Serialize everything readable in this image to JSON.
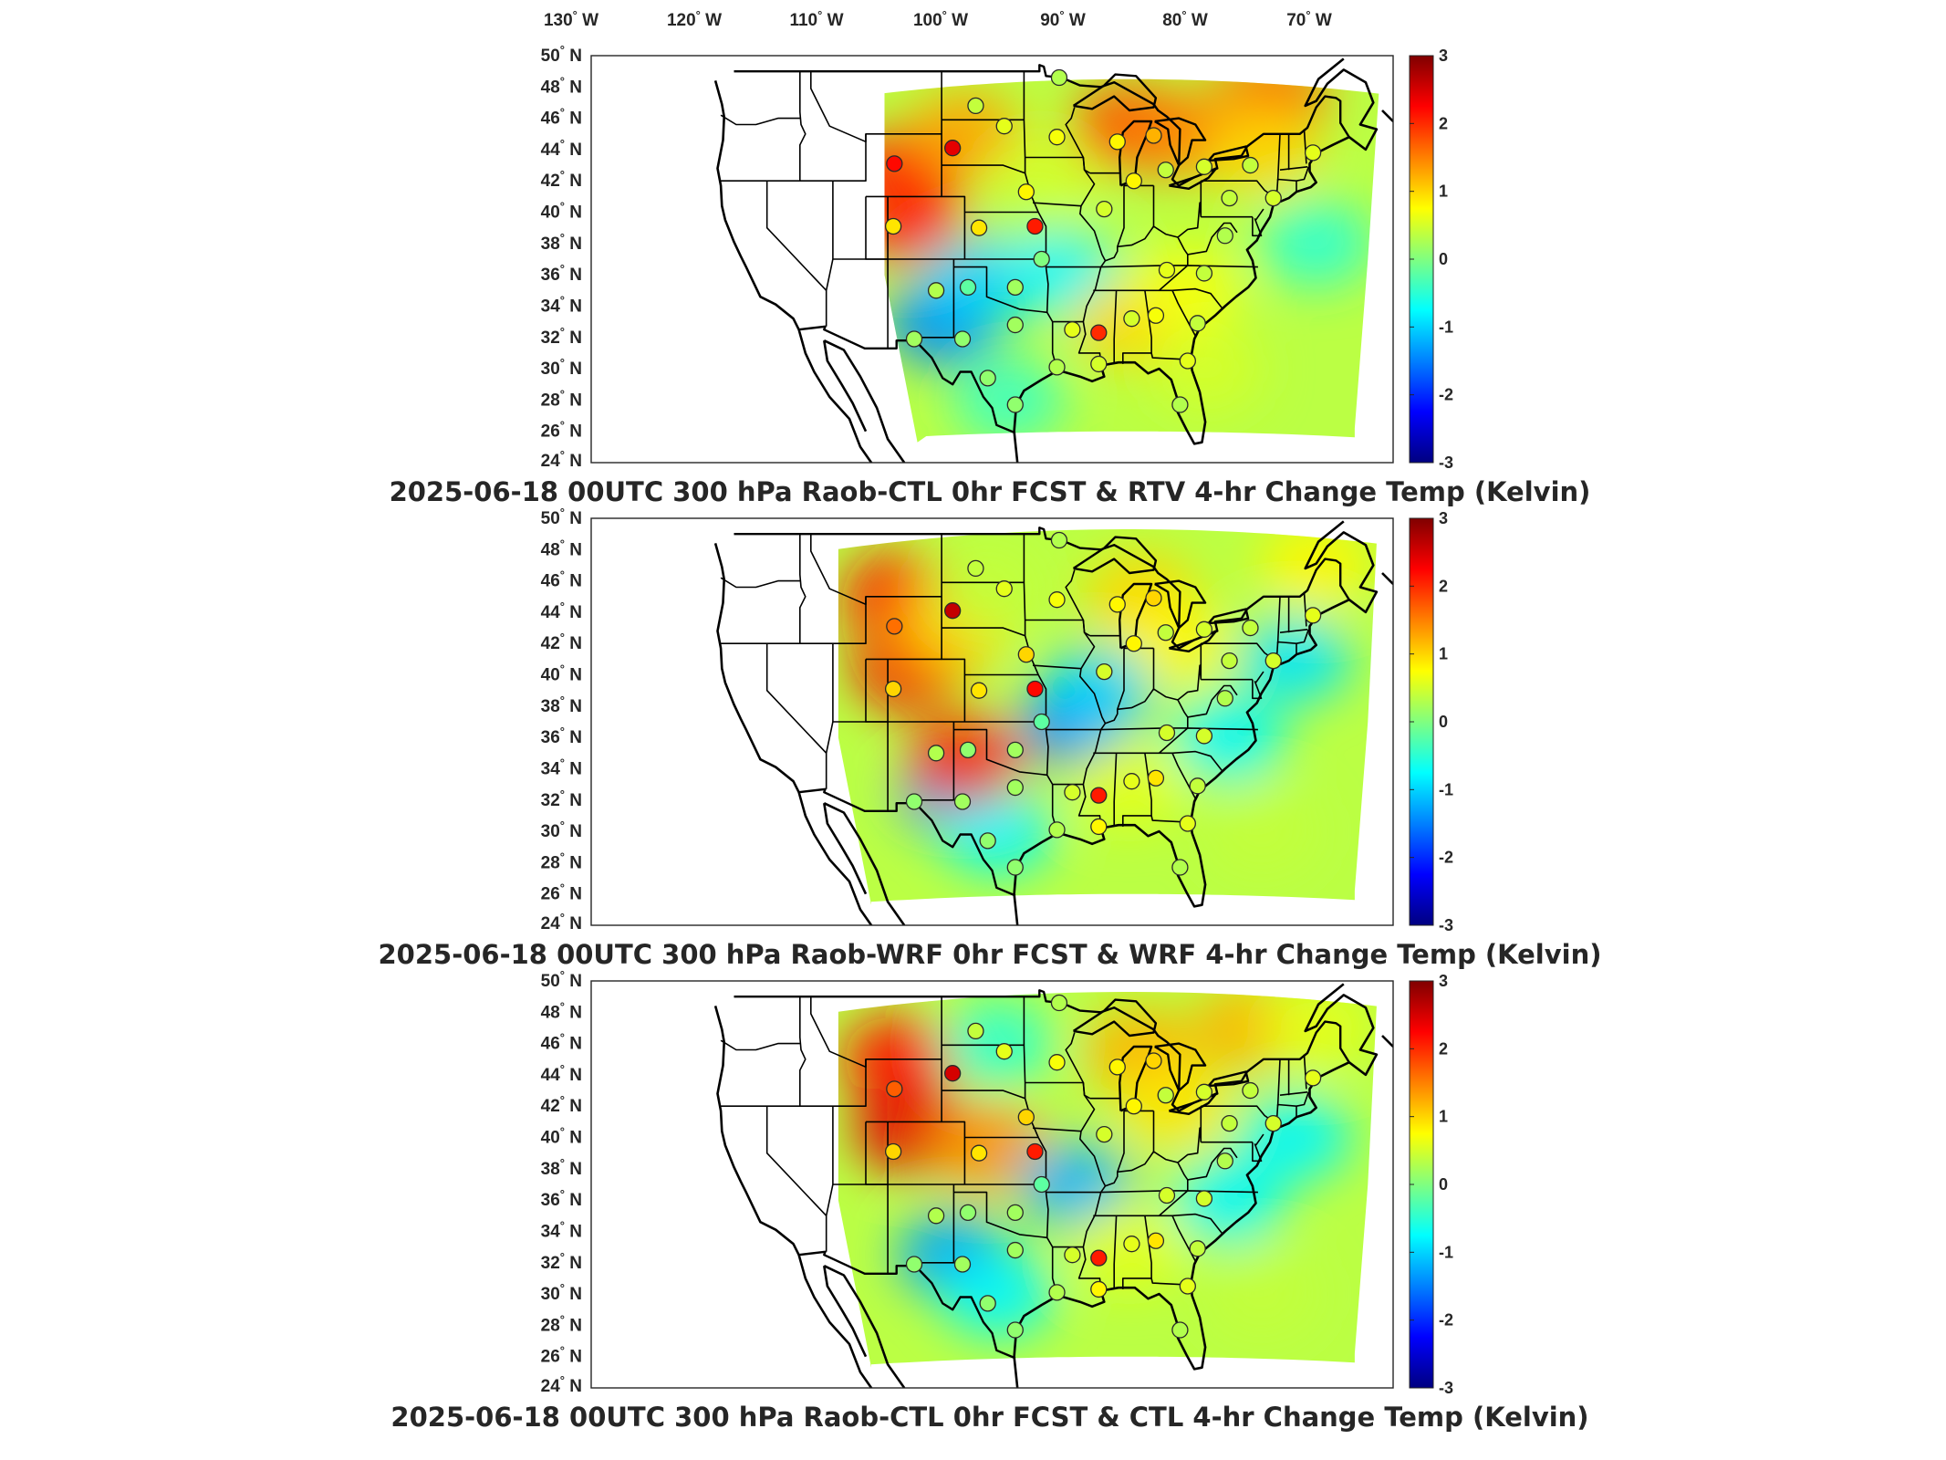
{
  "figure": {
    "lon_labels": [
      "130",
      "120",
      "110",
      "100",
      "90",
      "80",
      "70"
    ],
    "lon_suffix": "W",
    "lat_labels": [
      "50",
      "48",
      "46",
      "44",
      "42",
      "40",
      "38",
      "36",
      "34",
      "32",
      "30",
      "28",
      "26",
      "24"
    ],
    "lat_suffix": "N",
    "degree_symbol": "°",
    "colorbar": {
      "ticks": [
        "3",
        "2",
        "1",
        "0",
        "-1",
        "-2",
        "-3"
      ],
      "range": [
        -3,
        3
      ],
      "colormap": "jet"
    }
  },
  "panels": [
    {
      "title": "2025-06-18 00UTC 300 hPa Raob-CTL 0hr FCST & RTV 4-hr Change Temp (Kelvin)",
      "field": {
        "regions": [
          {
            "lon": -107.5,
            "lat": 42.5,
            "value": 2.2
          },
          {
            "lon": -107.0,
            "lat": 39.5,
            "value": 2.0
          },
          {
            "lon": -102.0,
            "lat": 45.0,
            "value": 1.3
          },
          {
            "lon": -87.0,
            "lat": 45.5,
            "value": 1.8
          },
          {
            "lon": -82.0,
            "lat": 45.0,
            "value": 1.5
          },
          {
            "lon": -74.0,
            "lat": 47.5,
            "value": 1.6
          },
          {
            "lon": -75.0,
            "lat": 44.0,
            "value": 1.0
          },
          {
            "lon": -95.0,
            "lat": 42.0,
            "value": 0.5
          },
          {
            "lon": -97.0,
            "lat": 38.0,
            "value": 0.3
          },
          {
            "lon": -104.0,
            "lat": 33.0,
            "value": -1.5
          },
          {
            "lon": -101.0,
            "lat": 35.5,
            "value": -1.0
          },
          {
            "lon": -93.0,
            "lat": 36.0,
            "value": -0.8
          },
          {
            "lon": -87.0,
            "lat": 33.0,
            "value": 1.0
          },
          {
            "lon": -82.0,
            "lat": 35.0,
            "value": 0.7
          },
          {
            "lon": -80.0,
            "lat": 30.0,
            "value": 0.5
          },
          {
            "lon": -70.0,
            "lat": 38.0,
            "value": -0.5
          },
          {
            "lon": -98.0,
            "lat": 28.0,
            "value": -0.4
          }
        ]
      },
      "stations": [
        {
          "lon": -108.4,
          "lat": 43.1,
          "value": 2.2
        },
        {
          "lon": -103.1,
          "lat": 44.1,
          "value": 2.4
        },
        {
          "lon": -108.5,
          "lat": 39.1,
          "value": 0.9
        },
        {
          "lon": -95.6,
          "lat": 39.1,
          "value": 2.1
        },
        {
          "lon": -84.8,
          "lat": 44.9,
          "value": 1.2
        },
        {
          "lon": -89.8,
          "lat": 32.3,
          "value": 2.0
        },
        {
          "lon": -101.0,
          "lat": 46.8,
          "value": 0.4
        },
        {
          "lon": -98.4,
          "lat": 45.5,
          "value": 0.6
        },
        {
          "lon": -93.6,
          "lat": 44.8,
          "value": 0.7
        },
        {
          "lon": -88.1,
          "lat": 44.5,
          "value": 0.8
        },
        {
          "lon": -100.7,
          "lat": 39.0,
          "value": 0.9
        },
        {
          "lon": -96.4,
          "lat": 41.3,
          "value": 0.8
        },
        {
          "lon": -89.3,
          "lat": 40.2,
          "value": 0.5
        },
        {
          "lon": -86.6,
          "lat": 42.0,
          "value": 0.8
        },
        {
          "lon": -95.0,
          "lat": 37.0,
          "value": 0.0
        },
        {
          "lon": -104.6,
          "lat": 35.0,
          "value": 0.3
        },
        {
          "lon": -101.7,
          "lat": 35.2,
          "value": -0.2
        },
        {
          "lon": -97.4,
          "lat": 35.2,
          "value": 0.2
        },
        {
          "lon": -106.6,
          "lat": 31.9,
          "value": 0.2
        },
        {
          "lon": -102.2,
          "lat": 31.9,
          "value": 0.1
        },
        {
          "lon": -97.4,
          "lat": 32.8,
          "value": 0.2
        },
        {
          "lon": -92.2,
          "lat": 32.5,
          "value": 0.6
        },
        {
          "lon": -86.8,
          "lat": 33.2,
          "value": 0.5
        },
        {
          "lon": -84.6,
          "lat": 33.4,
          "value": 0.7
        },
        {
          "lon": -83.6,
          "lat": 36.3,
          "value": 0.6
        },
        {
          "lon": -80.2,
          "lat": 36.1,
          "value": 0.4
        },
        {
          "lon": -78.3,
          "lat": 38.5,
          "value": 0.3
        },
        {
          "lon": -80.8,
          "lat": 32.9,
          "value": 0.4
        },
        {
          "lon": -81.7,
          "lat": 30.5,
          "value": 0.6
        },
        {
          "lon": -82.4,
          "lat": 27.7,
          "value": 0.3
        },
        {
          "lon": -89.8,
          "lat": 30.3,
          "value": 0.5
        },
        {
          "lon": -93.6,
          "lat": 30.1,
          "value": 0.3
        },
        {
          "lon": -97.4,
          "lat": 27.7,
          "value": 0.1
        },
        {
          "lon": -99.9,
          "lat": 29.4,
          "value": 0.1
        },
        {
          "lon": -77.9,
          "lat": 40.9,
          "value": 0.4
        },
        {
          "lon": -73.9,
          "lat": 40.9,
          "value": 0.5
        },
        {
          "lon": -70.3,
          "lat": 43.8,
          "value": 0.6
        },
        {
          "lon": -76.0,
          "lat": 43.0,
          "value": 0.4
        },
        {
          "lon": -93.4,
          "lat": 48.6,
          "value": 0.3
        },
        {
          "lon": -80.2,
          "lat": 42.9,
          "value": 0.5
        },
        {
          "lon": -83.7,
          "lat": 42.7,
          "value": 0.4
        }
      ]
    },
    {
      "title": "2025-06-18 00UTC 300 hPa Raob-WRF 0hr FCST & WRF 4-hr Change Temp (Kelvin)",
      "field": {
        "regions": [
          {
            "lon": -108.0,
            "lat": 45.0,
            "value": 2.2
          },
          {
            "lon": -107.0,
            "lat": 40.5,
            "value": 2.3
          },
          {
            "lon": -103.0,
            "lat": 43.0,
            "value": 1.0
          },
          {
            "lon": -86.0,
            "lat": 45.0,
            "value": 1.0
          },
          {
            "lon": -83.0,
            "lat": 42.0,
            "value": 0.8
          },
          {
            "lon": -92.0,
            "lat": 37.0,
            "value": -1.6
          },
          {
            "lon": -90.0,
            "lat": 39.0,
            "value": -1.0
          },
          {
            "lon": -103.0,
            "lat": 32.5,
            "value": -1.3
          },
          {
            "lon": -99.0,
            "lat": 30.0,
            "value": -0.8
          },
          {
            "lon": -78.0,
            "lat": 36.0,
            "value": -0.8
          },
          {
            "lon": -72.0,
            "lat": 41.0,
            "value": -0.9
          },
          {
            "lon": -75.0,
            "lat": 30.0,
            "value": 0.4
          },
          {
            "lon": -87.0,
            "lat": 33.0,
            "value": 0.6
          },
          {
            "lon": -100.0,
            "lat": 45.5,
            "value": 0.4
          },
          {
            "lon": -102.0,
            "lat": 34.5,
            "value": 2.0
          },
          {
            "lon": -70.0,
            "lat": 47.0,
            "value": 0.8
          }
        ]
      },
      "stations": [
        {
          "lon": -108.4,
          "lat": 43.1,
          "value": 1.6
        },
        {
          "lon": -103.1,
          "lat": 44.1,
          "value": 2.6
        },
        {
          "lon": -108.5,
          "lat": 39.1,
          "value": 1.0
        },
        {
          "lon": -95.6,
          "lat": 39.1,
          "value": 2.2
        },
        {
          "lon": -84.8,
          "lat": 44.9,
          "value": 1.0
        },
        {
          "lon": -89.8,
          "lat": 32.3,
          "value": 2.1
        },
        {
          "lon": -101.0,
          "lat": 46.8,
          "value": 0.4
        },
        {
          "lon": -98.4,
          "lat": 45.5,
          "value": 0.6
        },
        {
          "lon": -93.6,
          "lat": 44.8,
          "value": 0.7
        },
        {
          "lon": -88.1,
          "lat": 44.5,
          "value": 0.8
        },
        {
          "lon": -100.7,
          "lat": 39.0,
          "value": 0.9
        },
        {
          "lon": -96.4,
          "lat": 41.3,
          "value": 1.0
        },
        {
          "lon": -89.3,
          "lat": 40.2,
          "value": 0.5
        },
        {
          "lon": -86.6,
          "lat": 42.0,
          "value": 0.8
        },
        {
          "lon": -95.0,
          "lat": 37.0,
          "value": -0.2
        },
        {
          "lon": -104.6,
          "lat": 35.0,
          "value": 0.3
        },
        {
          "lon": -101.7,
          "lat": 35.2,
          "value": 0.1
        },
        {
          "lon": -97.4,
          "lat": 35.2,
          "value": 0.2
        },
        {
          "lon": -106.6,
          "lat": 31.9,
          "value": 0.1
        },
        {
          "lon": -102.2,
          "lat": 31.9,
          "value": 0.2
        },
        {
          "lon": -97.4,
          "lat": 32.8,
          "value": 0.2
        },
        {
          "lon": -92.2,
          "lat": 32.5,
          "value": 0.5
        },
        {
          "lon": -86.8,
          "lat": 33.2,
          "value": 0.6
        },
        {
          "lon": -84.6,
          "lat": 33.4,
          "value": 0.9
        },
        {
          "lon": -83.6,
          "lat": 36.3,
          "value": 0.5
        },
        {
          "lon": -80.2,
          "lat": 36.1,
          "value": 0.5
        },
        {
          "lon": -78.3,
          "lat": 38.5,
          "value": 0.3
        },
        {
          "lon": -80.8,
          "lat": 32.9,
          "value": 0.4
        },
        {
          "lon": -81.7,
          "lat": 30.5,
          "value": 0.6
        },
        {
          "lon": -82.4,
          "lat": 27.7,
          "value": 0.3
        },
        {
          "lon": -89.8,
          "lat": 30.3,
          "value": 0.8
        },
        {
          "lon": -93.6,
          "lat": 30.1,
          "value": 0.3
        },
        {
          "lon": -97.4,
          "lat": 27.7,
          "value": 0.1
        },
        {
          "lon": -99.9,
          "lat": 29.4,
          "value": 0.1
        },
        {
          "lon": -77.9,
          "lat": 40.9,
          "value": 0.4
        },
        {
          "lon": -73.9,
          "lat": 40.9,
          "value": 0.5
        },
        {
          "lon": -70.3,
          "lat": 43.8,
          "value": 0.6
        },
        {
          "lon": -76.0,
          "lat": 43.0,
          "value": 0.4
        },
        {
          "lon": -93.4,
          "lat": 48.6,
          "value": 0.3
        },
        {
          "lon": -80.2,
          "lat": 42.9,
          "value": 0.5
        },
        {
          "lon": -83.7,
          "lat": 42.7,
          "value": 0.4
        }
      ]
    },
    {
      "title": "2025-06-18 00UTC 300 hPa Raob-CTL 0hr FCST & CTL 4-hr Change Temp (Kelvin)",
      "field": {
        "regions": [
          {
            "lon": -108.0,
            "lat": 45.0,
            "value": 2.2
          },
          {
            "lon": -107.0,
            "lat": 40.5,
            "value": 2.4
          },
          {
            "lon": -100.0,
            "lat": 39.5,
            "value": 1.4
          },
          {
            "lon": -86.0,
            "lat": 45.5,
            "value": 1.2
          },
          {
            "lon": -83.0,
            "lat": 42.0,
            "value": 0.9
          },
          {
            "lon": -76.0,
            "lat": 47.0,
            "value": 1.2
          },
          {
            "lon": -92.0,
            "lat": 37.0,
            "value": -1.2
          },
          {
            "lon": -103.0,
            "lat": 32.5,
            "value": -1.3
          },
          {
            "lon": -99.0,
            "lat": 30.0,
            "value": -0.8
          },
          {
            "lon": -78.0,
            "lat": 36.0,
            "value": -0.8
          },
          {
            "lon": -72.0,
            "lat": 40.0,
            "value": -0.8
          },
          {
            "lon": -75.0,
            "lat": 30.0,
            "value": 0.4
          },
          {
            "lon": -87.0,
            "lat": 33.0,
            "value": 0.6
          },
          {
            "lon": -99.0,
            "lat": 46.0,
            "value": -0.5
          },
          {
            "lon": -70.0,
            "lat": 47.0,
            "value": 0.6
          }
        ]
      },
      "stations": [
        {
          "lon": -108.4,
          "lat": 43.1,
          "value": 1.7
        },
        {
          "lon": -103.1,
          "lat": 44.1,
          "value": 2.5
        },
        {
          "lon": -108.5,
          "lat": 39.1,
          "value": 1.0
        },
        {
          "lon": -95.6,
          "lat": 39.1,
          "value": 2.1
        },
        {
          "lon": -84.8,
          "lat": 44.9,
          "value": 1.0
        },
        {
          "lon": -89.8,
          "lat": 32.3,
          "value": 2.1
        },
        {
          "lon": -101.0,
          "lat": 46.8,
          "value": 0.4
        },
        {
          "lon": -98.4,
          "lat": 45.5,
          "value": 0.6
        },
        {
          "lon": -93.6,
          "lat": 44.8,
          "value": 0.7
        },
        {
          "lon": -88.1,
          "lat": 44.5,
          "value": 0.8
        },
        {
          "lon": -100.7,
          "lat": 39.0,
          "value": 0.9
        },
        {
          "lon": -96.4,
          "lat": 41.3,
          "value": 1.0
        },
        {
          "lon": -89.3,
          "lat": 40.2,
          "value": 0.5
        },
        {
          "lon": -86.6,
          "lat": 42.0,
          "value": 0.8
        },
        {
          "lon": -95.0,
          "lat": 37.0,
          "value": -0.2
        },
        {
          "lon": -104.6,
          "lat": 35.0,
          "value": 0.3
        },
        {
          "lon": -101.7,
          "lat": 35.2,
          "value": 0.1
        },
        {
          "lon": -97.4,
          "lat": 35.2,
          "value": 0.2
        },
        {
          "lon": -106.6,
          "lat": 31.9,
          "value": 0.1
        },
        {
          "lon": -102.2,
          "lat": 31.9,
          "value": 0.2
        },
        {
          "lon": -97.4,
          "lat": 32.8,
          "value": 0.2
        },
        {
          "lon": -92.2,
          "lat": 32.5,
          "value": 0.5
        },
        {
          "lon": -86.8,
          "lat": 33.2,
          "value": 0.6
        },
        {
          "lon": -84.6,
          "lat": 33.4,
          "value": 0.9
        },
        {
          "lon": -83.6,
          "lat": 36.3,
          "value": 0.5
        },
        {
          "lon": -80.2,
          "lat": 36.1,
          "value": 0.5
        },
        {
          "lon": -78.3,
          "lat": 38.5,
          "value": 0.3
        },
        {
          "lon": -80.8,
          "lat": 32.9,
          "value": 0.4
        },
        {
          "lon": -81.7,
          "lat": 30.5,
          "value": 0.6
        },
        {
          "lon": -82.4,
          "lat": 27.7,
          "value": 0.3
        },
        {
          "lon": -89.8,
          "lat": 30.3,
          "value": 0.8
        },
        {
          "lon": -93.6,
          "lat": 30.1,
          "value": 0.3
        },
        {
          "lon": -97.4,
          "lat": 27.7,
          "value": 0.1
        },
        {
          "lon": -99.9,
          "lat": 29.4,
          "value": 0.1
        },
        {
          "lon": -77.9,
          "lat": 40.9,
          "value": 0.4
        },
        {
          "lon": -73.9,
          "lat": 40.9,
          "value": 0.5
        },
        {
          "lon": -70.3,
          "lat": 43.8,
          "value": 0.6
        },
        {
          "lon": -76.0,
          "lat": 43.0,
          "value": 0.4
        },
        {
          "lon": -93.4,
          "lat": 48.6,
          "value": 0.3
        },
        {
          "lon": -80.2,
          "lat": 42.9,
          "value": 0.5
        },
        {
          "lon": -83.7,
          "lat": 42.7,
          "value": 0.4
        }
      ]
    }
  ]
}
